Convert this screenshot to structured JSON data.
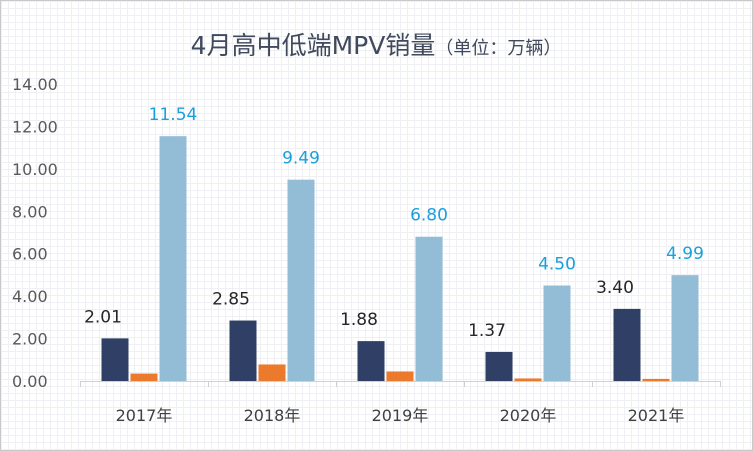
{
  "chart_data": {
    "type": "bar",
    "title_main": "4月高中低端MPV销量",
    "title_unit": "（单位：万辆）",
    "categories": [
      "2017年",
      "2018年",
      "2019年",
      "2020年",
      "2021年"
    ],
    "ylim": [
      0,
      14
    ],
    "yticks": [
      "0.00",
      "2.00",
      "4.00",
      "6.00",
      "8.00",
      "10.00",
      "12.00",
      "14.00"
    ],
    "series": [
      {
        "values": [
          2.01,
          2.85,
          1.88,
          1.37,
          3.4
        ],
        "labels": [
          "2.01",
          "2.85",
          "1.88",
          "1.37",
          "3.40"
        ],
        "color": "#2f3f66",
        "label_color": "#262626"
      },
      {
        "values": [
          0.35,
          0.78,
          0.45,
          0.12,
          0.1
        ],
        "labels": [
          "",
          "",
          "",
          "",
          ""
        ],
        "color": "#ec7a2c",
        "label_color": "#262626"
      },
      {
        "values": [
          11.54,
          9.49,
          6.8,
          4.5,
          4.99
        ],
        "labels": [
          "11.54",
          "9.49",
          "6.80",
          "4.50",
          "4.99"
        ],
        "color": "#93bdd6",
        "label_color": "#1aa0dc"
      }
    ],
    "grid": false,
    "legend": "none"
  }
}
